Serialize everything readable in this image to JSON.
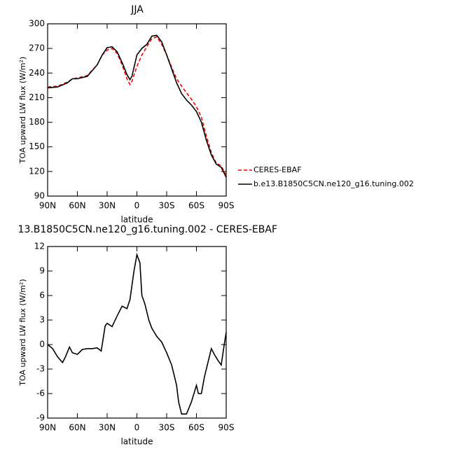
{
  "chart_data": [
    {
      "type": "line",
      "title": "JJA",
      "xlabel": "latitude",
      "ylabel": "TOA upward LW flux (W/m²)",
      "x": [
        90,
        80,
        70,
        65,
        60,
        50,
        40,
        35,
        30,
        25,
        20,
        15,
        10,
        7,
        5,
        0,
        -5,
        -10,
        -15,
        -20,
        -25,
        -30,
        -35,
        -40,
        -45,
        -50,
        -55,
        -60,
        -65,
        -70,
        -75,
        -80,
        -85,
        -90
      ],
      "series": [
        {
          "name": "CERES-EBAF",
          "color": "#ff0000",
          "dashed": true,
          "values": [
            223,
            224,
            229,
            233,
            234,
            237,
            250,
            262,
            268,
            270,
            264,
            250,
            233,
            226,
            230,
            248,
            262,
            272,
            282,
            284,
            275,
            262,
            247,
            233,
            224,
            216,
            208,
            199,
            186,
            163,
            143,
            130,
            127,
            115
          ]
        },
        {
          "name": "b.e13.B1850C5CN.ne120_g16.tuning.002",
          "color": "#000000",
          "dashed": false,
          "values": [
            222,
            223,
            228,
            233,
            233,
            236,
            250,
            262,
            271,
            272,
            266,
            253,
            238,
            232,
            236,
            262,
            270,
            275,
            285,
            286,
            278,
            262,
            245,
            228,
            215,
            207,
            201,
            193,
            180,
            158,
            140,
            129,
            125,
            113
          ]
        }
      ],
      "xlim": [
        90,
        -90
      ],
      "xticks": [
        {
          "value": 90,
          "label": "90N"
        },
        {
          "value": 60,
          "label": "60N"
        },
        {
          "value": 30,
          "label": "30N"
        },
        0,
        {
          "value": -30,
          "label": "30S"
        },
        {
          "value": -60,
          "label": "60S"
        },
        {
          "value": -90,
          "label": "90S"
        }
      ],
      "ylim": [
        90,
        300
      ],
      "yticks": [
        90,
        120,
        150,
        180,
        210,
        240,
        270,
        300
      ],
      "legend": "right"
    },
    {
      "type": "line",
      "title": "13.B1850C5CN.ne120_g16.tuning.002 - CERES-EBAF",
      "xlabel": "latitude",
      "ylabel": "TOA upward LW flux (W/m²)",
      "x": [
        90,
        85,
        80,
        75,
        72,
        68,
        65,
        60,
        55,
        50,
        45,
        40,
        36,
        32,
        30,
        25,
        20,
        15,
        10,
        7,
        3,
        0,
        -3,
        -5,
        -8,
        -12,
        -15,
        -20,
        -25,
        -30,
        -35,
        -40,
        -42,
        -45,
        -50,
        -55,
        -60,
        -62,
        -65,
        -68,
        -72,
        -75,
        -78,
        -82,
        -85,
        -88,
        -90
      ],
      "series": [
        {
          "name": null,
          "color": "#000000",
          "dashed": false,
          "values": [
            0,
            -0.5,
            -1.5,
            -2.2,
            -1.5,
            -0.3,
            -1,
            -1.2,
            -0.6,
            -0.5,
            -0.5,
            -0.4,
            -0.8,
            2.3,
            2.6,
            2.2,
            3.5,
            4.7,
            4.4,
            5.5,
            9,
            11,
            10,
            6,
            5,
            3,
            2,
            1,
            0.3,
            -1,
            -2.5,
            -5,
            -7,
            -8.5,
            -8.5,
            -7,
            -5,
            -6,
            -6,
            -4,
            -2,
            -0.5,
            -1.2,
            -2,
            -2.5,
            0,
            1.5
          ]
        }
      ],
      "xlim": [
        90,
        -90
      ],
      "xticks": [
        {
          "value": 90,
          "label": "90N"
        },
        {
          "value": 60,
          "label": "60N"
        },
        {
          "value": 30,
          "label": "30N"
        },
        0,
        {
          "value": -30,
          "label": "30S"
        },
        {
          "value": -60,
          "label": "60S"
        },
        {
          "value": -90,
          "label": "90S"
        }
      ],
      "ylim": [
        -9,
        12
      ],
      "yticks": [
        -9,
        -6,
        -3,
        0,
        3,
        6,
        9,
        12
      ]
    }
  ]
}
